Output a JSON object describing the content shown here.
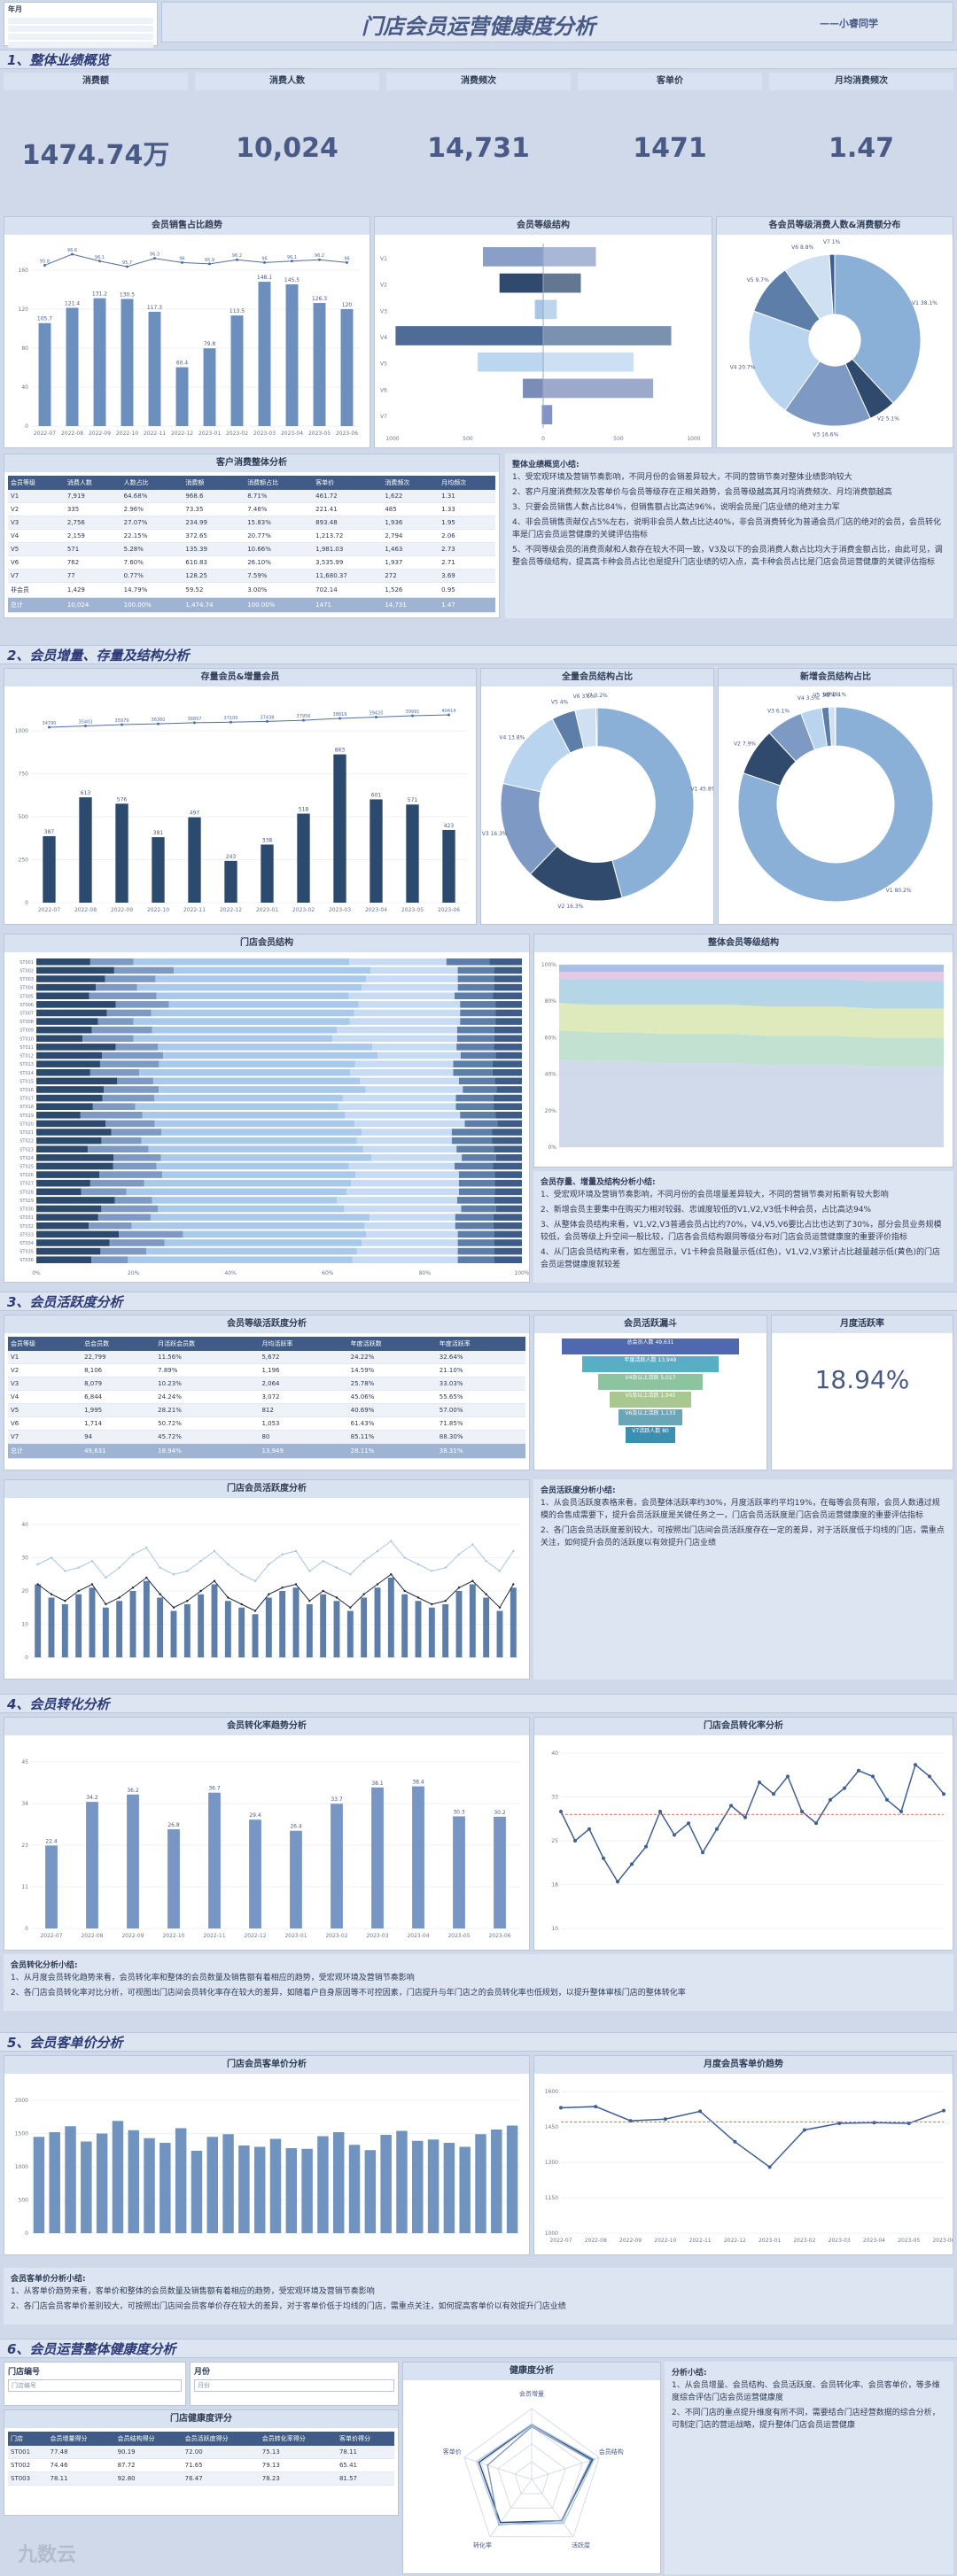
{
  "header": {
    "title": "门店会员运营健康度分析",
    "author": "——小睿同学",
    "filter_label": "年月"
  },
  "sections": {
    "s1": "1、整体业绩概览",
    "s2": "2、会员增量、存量及结构分析",
    "s3": "3、会员活跃度分析",
    "s4": "4、会员转化分析",
    "s5": "5、会员客单价分析",
    "s6": "6、会员运营整体健康度分析"
  },
  "kpis": [
    {
      "label": "消费额",
      "value": "1474.74万"
    },
    {
      "label": "消费人数",
      "value": "10,024"
    },
    {
      "label": "消费频次",
      "value": "14,731"
    },
    {
      "label": "客单价",
      "value": "1471"
    },
    {
      "label": "月均消费频次",
      "value": "1.47"
    }
  ],
  "titles": {
    "sales_ratio": "会员销售占比趋势",
    "member_struct": "会员等级结构",
    "level_pie": "各会员等级消费人数&消费额分布",
    "customer_table": "客户消费整体分析",
    "summary1": "整体业绩概览小结:",
    "stock_new": "存量会员&增量会员",
    "all_struct": "全量会员结构占比",
    "new_struct": "新增会员结构占比",
    "store_struct": "门店会员结构",
    "level_trend": "整体会员等级结构",
    "summary2": "会员存量、增量及结构分析小结:",
    "activity_table": "会员等级活跃度分析",
    "funnel": "会员活跃漏斗",
    "monthly_active": "月度活跃率",
    "store_activity": "门店会员活跃度分析",
    "summary3": "会员活跃度分析小结:",
    "conv_trend": "会员转化率趋势分析",
    "store_conv": "门店会员转化率分析",
    "summary4": "会员转化分析小结:",
    "store_price": "门店会员客单价分析",
    "monthly_price": "月度会员客单价趋势",
    "summary5": "会员客单价分析小结:",
    "store_no": "门店编号",
    "month": "月份",
    "health_table": "门店健康度评分",
    "health_radar": "健康度分析",
    "summary6": "分析小结:",
    "watermark": "九数云"
  },
  "monthly_active_value": "18.94%",
  "summary1": [
    "1、受宏观环境及营销节奏影响，不同月份的会销差异较大，不同的营销节奏对整体业绩影响较大",
    "2、客户月度消费频次及客单价与会员等级存在正相关趋势，会员等级越高其月均消费频次、月均消费额越高",
    "3、只要会员销售人数占比84%，但销售额占比高达96%，说明会员是门店业绩的绝对主力军",
    "4、非会员销售贡献仅占5%左右，说明非会员人数占比达40%，非会员消费转化为普通会员/门店的绝对的会员，会员转化率是门店会员运营健康的关键评估指标",
    "5、不同等级会员的消费贡献和人数存在较大不同一致，V3及以下的会员消费人数占比均大于消费金额占比，由此可见，调整会员等级结构，提高高卡种会员占比也是提升门店业绩的切入点，高卡种会员占比是门店会员运营健康的关键评估指标"
  ],
  "summary2": [
    "1、受宏观环境及营销节奏影响，不同月份的会员增量差异较大，不同的营销节奏对拓新有较大影响",
    "2、新增会员主要集中在购买力相对较弱、忠诚度较低的V1,V2,V3低卡种会员，占比高达94%",
    "3、从整体会员结构来看，V1,V2,V3普通会员占比约70%，V4,V5,V6要比占比也达到了30%，部分会员业务规模较低，会员等级上升空间一般比较，门店各会员结构跟同等级分布对门店会员运营健康度的重要评价指标",
    "4、从门店会员结构来看，如左图显示，V1卡种会员融量示低(红色)，V1,V2,V3累计占比越量越示低(黄色)的门店会员运营健康度就较差"
  ],
  "summary3": [
    "1、从会员活跃度表格来看，会员整体活跃率约30%，月度活跃率约平均19%，在每等会员有限，会员人数通过规模的合售成需要下，提升会员活跃度是关键任务之一，门店会员活跃度是门店会员运营健康度的重要评估指标",
    "2、各门店会员活跃度差别较大，可按照出门店间会员活跃度存在一定的差异，对于活跃度低于均线的门店，需重点关注，如何提升会员的活跃度以有效提升门店业绩"
  ],
  "summary4": [
    "1、从月度会员转化趋势来看，会员转化率和整体的会员数量及销售额有着相应的趋势，受宏观环境及营销节奏影响",
    "2、各门店会员转化率对比分析，可视图出门店间会员转化率存在较大的差异，如随着户自身原因等不可控因素，门店提升与年门店之的会员转化率也低规划，以提升整体审核门店的整体转化率"
  ],
  "summary5": [
    "1、从客单价趋势来看，客单价和整体的会员数量及销售额有着相应的趋势，受宏观环境及营销节奏影响",
    "2、各门店会员客单价差别较大，可按照出门店间会员客单价存在较大的差异，对于客单价低于均线的门店，需重点关注，如何提高客单价以有效提升门店业绩"
  ],
  "summary6": [
    "1、从会员增量、会员结构、会员活跃度、会员转化率、会员客单价，等多维度综合评估门店会员运营健康度",
    "2、不同门店的重点提升维度有所不同，需要结合门店经营数据的综合分析，可制定门店的营运战略，提升整体门店会员运营健康"
  ],
  "filter": {
    "store_value": "门店编号",
    "month_value": "月份"
  },
  "customer_table": {
    "headers": [
      "会员等级",
      "消费人数",
      "人数占比",
      "消费额",
      "消费额占比",
      "客单价",
      "消费频次",
      "月均频次"
    ],
    "rows": [
      [
        "V1",
        "7,919",
        "64.68%",
        "968.6",
        "8.71%",
        "461.72",
        "1,622",
        "1.31"
      ],
      [
        "V2",
        "335",
        "2.96%",
        "73.35",
        "7.46%",
        "221.41",
        "485",
        "1.33"
      ],
      [
        "V3",
        "2,756",
        "27.07%",
        "234.99",
        "15.83%",
        "893.48",
        "1,936",
        "1.95"
      ],
      [
        "V4",
        "2,159",
        "22.15%",
        "372.65",
        "20.77%",
        "1,213.72",
        "2,794",
        "2.06"
      ],
      [
        "V5",
        "571",
        "5.28%",
        "135.39",
        "10.66%",
        "1,981.03",
        "1,463",
        "2.73"
      ],
      [
        "V6",
        "762",
        "7.60%",
        "610.83",
        "26.10%",
        "3,535.99",
        "1,937",
        "2.71"
      ],
      [
        "V7",
        "77",
        "0.77%",
        "128.25",
        "7.59%",
        "11,680.37",
        "272",
        "3.69"
      ],
      [
        "非会员",
        "1,429",
        "14.79%",
        "59.52",
        "3.00%",
        "702.14",
        "1,526",
        "0.95"
      ],
      [
        "总计",
        "10,024",
        "100.00%",
        "1,474.74",
        "100.00%",
        "1471",
        "14,731",
        "1.47"
      ]
    ]
  },
  "activity_table": {
    "headers": [
      "会员等级",
      "总会员数",
      "月活跃会员数",
      "月均活跃率",
      "年度活跃数",
      "年度活跃率"
    ],
    "rows": [
      [
        "V1",
        "22,799",
        "11.56%",
        "5,672",
        "24.22%",
        "32.64%"
      ],
      [
        "V2",
        "8,106",
        "7.89%",
        "1,196",
        "14.59%",
        "21.10%"
      ],
      [
        "V3",
        "8,079",
        "10.23%",
        "2,064",
        "25.78%",
        "33.03%"
      ],
      [
        "V4",
        "6,844",
        "24.24%",
        "3,072",
        "45.06%",
        "55.65%"
      ],
      [
        "V5",
        "1,995",
        "28.21%",
        "812",
        "40.69%",
        "57.00%"
      ],
      [
        "V6",
        "1,714",
        "50.72%",
        "1,053",
        "61.43%",
        "71.85%"
      ],
      [
        "V7",
        "94",
        "45.72%",
        "80",
        "85.11%",
        "88.30%"
      ],
      [
        "总计",
        "49,631",
        "18.94%",
        "13,949",
        "28.11%",
        "38.31%"
      ]
    ]
  },
  "funnel": [
    {
      "label": "总会员人数",
      "value": "49,631"
    },
    {
      "label": "年度活跃人数",
      "value": "13,949"
    },
    {
      "label": "V4及以上活跃",
      "value": "5,017"
    },
    {
      "label": "V5及以上活跃",
      "value": "1,945"
    },
    {
      "label": "V6及以上活跃",
      "value": "1,133"
    },
    {
      "label": "V7活跃人数",
      "value": "80"
    }
  ],
  "health_table": {
    "headers": [
      "门店",
      "会员增量得分",
      "会员结构得分",
      "会员活跃度得分",
      "会员转化率得分",
      "客单价得分"
    ],
    "rows": [
      [
        "ST001",
        "77.48",
        "90.19",
        "72.00",
        "75.13",
        "78.11"
      ],
      [
        "ST002",
        "74.46",
        "87.72",
        "71.65",
        "79.13",
        "65.41"
      ],
      [
        "ST003",
        "78.11",
        "92.80",
        "76.47",
        "78.23",
        "81.57"
      ]
    ]
  },
  "health_axes": [
    "会员增量",
    "会员结构",
    "活跃度",
    "转化率",
    "客单价"
  ],
  "chart_data": [
    {
      "name": "sales_ratio",
      "type": "bar",
      "categories": [
        "2022-07",
        "2022-08",
        "2022-09",
        "2022-10",
        "2022-11",
        "2022-12",
        "2023-01",
        "2023-02",
        "2023-03",
        "2023-04",
        "2023-05",
        "2023-06"
      ],
      "values": [
        105.7,
        121.4,
        131.2,
        130.5,
        117.3,
        60.4,
        79.8,
        113.5,
        148.1,
        145.5,
        126.3,
        120.0
      ],
      "line": [
        95.8,
        96.6,
        96.1,
        95.7,
        96.3,
        96.0,
        95.9,
        96.2,
        96.0,
        96.1,
        96.2,
        96.0
      ],
      "ylim": [
        0,
        160
      ]
    },
    {
      "name": "stock_new",
      "type": "bar",
      "categories": [
        "2022-07",
        "2022-08",
        "2022-09",
        "2022-10",
        "2022-11",
        "2022-12",
        "2023-01",
        "2023-02",
        "2023-03",
        "2023-04",
        "2023-05",
        "2023-06"
      ],
      "values": [
        387,
        613,
        576,
        381,
        497,
        243,
        338,
        518,
        863,
        601,
        571,
        423
      ],
      "line": [
        34790,
        35403,
        35979,
        36360,
        36857,
        37100,
        37438,
        37956,
        38819,
        39420,
        39991,
        40414
      ],
      "ylim": [
        0,
        1000
      ]
    },
    {
      "name": "conv_trend",
      "type": "bar",
      "categories": [
        "2022-07",
        "2022-08",
        "2022-09",
        "2022-10",
        "2022-11",
        "2022-12",
        "2023-01",
        "2023-02",
        "2023-03",
        "2023-04",
        "2023-05",
        "2023-06"
      ],
      "values": [
        22.4,
        34.2,
        36.2,
        26.8,
        36.7,
        29.4,
        26.4,
        33.7,
        38.1,
        38.4,
        30.3,
        30.2
      ],
      "ylim": [
        0,
        45
      ]
    },
    {
      "name": "monthly_price",
      "type": "line",
      "categories": [
        "2022-07",
        "2022-08",
        "2022-09",
        "2022-10",
        "2022-11",
        "2022-12",
        "2023-01",
        "2023-02",
        "2023-03",
        "2023-04",
        "2023-05",
        "2023-06"
      ],
      "values": [
        1531,
        1536,
        1476,
        1483,
        1516,
        1387,
        1280,
        1437,
        1465,
        1468,
        1465,
        1519
      ],
      "ylim": [
        1000,
        1600
      ]
    },
    {
      "name": "store_conv",
      "type": "line",
      "values": [
        30,
        25,
        27,
        22,
        18,
        21,
        24,
        30,
        26,
        28,
        23,
        27,
        31,
        29,
        35,
        33,
        36,
        30,
        28,
        32,
        34,
        37,
        36,
        32,
        30,
        38,
        36,
        33
      ],
      "ylim": [
        10,
        40
      ]
    },
    {
      "name": "store_price",
      "type": "bar",
      "values": [
        1450,
        1520,
        1610,
        1380,
        1500,
        1690,
        1550,
        1430,
        1360,
        1580,
        1240,
        1450,
        1490,
        1320,
        1300,
        1420,
        1280,
        1270,
        1460,
        1520,
        1330,
        1250,
        1480,
        1540,
        1390,
        1410,
        1360,
        1300,
        1490,
        1560,
        1620
      ],
      "ylim": [
        0,
        2000
      ]
    },
    {
      "name": "store_activity",
      "type": "bar",
      "values": [
        22,
        18,
        16,
        19,
        21,
        15,
        17,
        20,
        23,
        18,
        14,
        16,
        19,
        22,
        17,
        15,
        13,
        18,
        20,
        21,
        16,
        19,
        17,
        14,
        18,
        21,
        24,
        19,
        17,
        15,
        16,
        20,
        22,
        18,
        14,
        21
      ],
      "line_a": [
        28,
        30,
        26,
        27,
        29,
        24,
        27,
        31,
        33,
        27,
        25,
        26,
        29,
        32,
        28,
        25,
        23,
        28,
        31,
        32,
        26,
        29,
        27,
        25,
        29,
        32,
        35,
        30,
        28,
        26,
        27,
        31,
        34,
        29,
        26,
        32
      ],
      "line_b": [
        22,
        19,
        17,
        20,
        22,
        16,
        18,
        21,
        24,
        19,
        15,
        17,
        20,
        23,
        18,
        16,
        14,
        19,
        21,
        22,
        17,
        20,
        18,
        15,
        19,
        22,
        25,
        20,
        18,
        16,
        17,
        21,
        23,
        19,
        15,
        22
      ],
      "ylim": [
        0,
        40
      ]
    },
    {
      "name": "level_area",
      "type": "area",
      "series": [
        {
          "name": "V1",
          "values": [
            48,
            47,
            47,
            46,
            46,
            46,
            45,
            45,
            45,
            44,
            44,
            44
          ]
        },
        {
          "name": "V2",
          "values": [
            16,
            16,
            16,
            16,
            16,
            16,
            16,
            16,
            16,
            16,
            16,
            16
          ]
        },
        {
          "name": "V3",
          "values": [
            15,
            15,
            15,
            16,
            16,
            16,
            16,
            16,
            16,
            16,
            16,
            16
          ]
        },
        {
          "name": "V4",
          "values": [
            13,
            14,
            14,
            14,
            14,
            14,
            15,
            15,
            15,
            15,
            15,
            15
          ]
        },
        {
          "name": "V5",
          "values": [
            4,
            4,
            4,
            4,
            4,
            4,
            4,
            4,
            4,
            5,
            5,
            5
          ]
        },
        {
          "name": "V6",
          "values": [
            3,
            3,
            3,
            3,
            3,
            3,
            3,
            3,
            3,
            3,
            3,
            3
          ]
        },
        {
          "name": "V7",
          "values": [
            1,
            1,
            1,
            1,
            1,
            1,
            1,
            1,
            1,
            1,
            1,
            1
          ]
        }
      ],
      "ylim": [
        0,
        100
      ]
    },
    {
      "name": "all_struct",
      "type": "pie",
      "labels": [
        "V1",
        "V2",
        "V3",
        "V4",
        "V5",
        "V6",
        "V7"
      ],
      "values": [
        45.8,
        16.3,
        16.3,
        13.8,
        4.0,
        3.5,
        0.2
      ]
    },
    {
      "name": "new_struct",
      "type": "pie",
      "labels": [
        "V1",
        "V2",
        "V3",
        "V4",
        "V5",
        "V6",
        "V7"
      ],
      "values": [
        80.2,
        7.9,
        6.1,
        3.5,
        1.2,
        1.0,
        0.1
      ]
    },
    {
      "name": "level_pie",
      "type": "pie",
      "labels": [
        "V1",
        "V2",
        "V3",
        "V4",
        "V5",
        "V6",
        "V7"
      ],
      "values": [
        38.1,
        5.1,
        16.6,
        20.7,
        9.7,
        8.8,
        1.0
      ]
    },
    {
      "name": "member_struct",
      "type": "bar",
      "categories": [
        "V1",
        "V2",
        "V3",
        "V4",
        "V5",
        "V6",
        "V7"
      ],
      "left": [
        400,
        290,
        55,
        980,
        435,
        135,
        8
      ],
      "right": [
        350,
        250,
        90,
        850,
        600,
        730,
        60
      ],
      "xlim": [
        -1000,
        1000
      ]
    },
    {
      "name": "radar",
      "type": "radar",
      "axes": [
        "会员增量",
        "会员结构",
        "活跃度",
        "转化率",
        "客单价"
      ],
      "series": [
        {
          "name": "ST001",
          "values": [
            77.48,
            90.19,
            72.0,
            75.13,
            78.11
          ]
        },
        {
          "name": "ST002",
          "values": [
            74.46,
            87.72,
            71.65,
            79.13,
            65.41
          ]
        },
        {
          "name": "ST003",
          "values": [
            78.11,
            92.8,
            76.47,
            78.23,
            81.57
          ]
        }
      ],
      "ylim": [
        0,
        100
      ]
    }
  ]
}
